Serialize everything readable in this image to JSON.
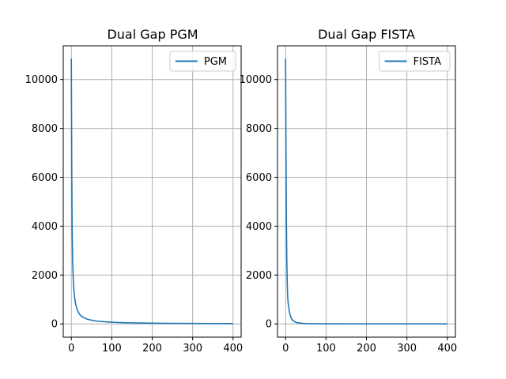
{
  "figure": {
    "background": "#ffffff",
    "line_color": "#1f77b4",
    "grid_color": "#b0b0b0"
  },
  "chart_data": [
    {
      "type": "line",
      "title": "Dual Gap PGM",
      "xlabel": "",
      "ylabel": "",
      "xlim": [
        -20,
        420
      ],
      "ylim": [
        -542,
        11380
      ],
      "xticks": [
        0,
        100,
        200,
        300,
        400
      ],
      "yticks": [
        0,
        2000,
        4000,
        6000,
        8000,
        10000
      ],
      "grid": true,
      "legend": "top-right",
      "series": [
        {
          "name": "PGM",
          "x": [
            0,
            1,
            2,
            3,
            4,
            5,
            6,
            7,
            8,
            10,
            12,
            15,
            20,
            25,
            30,
            40,
            50,
            60,
            80,
            100,
            120,
            150,
            200,
            250,
            300,
            350,
            400
          ],
          "y": [
            10850,
            6500,
            3900,
            2750,
            2150,
            1750,
            1450,
            1250,
            1100,
            880,
            720,
            560,
            400,
            320,
            260,
            190,
            150,
            120,
            90,
            70,
            55,
            42,
            30,
            23,
            18,
            15,
            12
          ]
        }
      ]
    },
    {
      "type": "line",
      "title": "Dual Gap FISTA",
      "xlabel": "",
      "ylabel": "",
      "xlim": [
        -20,
        420
      ],
      "ylim": [
        -542,
        11380
      ],
      "xticks": [
        0,
        100,
        200,
        300,
        400
      ],
      "yticks": [
        0,
        2000,
        4000,
        6000,
        8000,
        10000
      ],
      "grid": true,
      "legend": "top-right",
      "series": [
        {
          "name": "FISTA",
          "x": [
            0,
            1,
            2,
            3,
            4,
            5,
            6,
            8,
            10,
            12,
            15,
            20,
            25,
            30,
            40,
            50,
            60,
            80,
            100,
            150,
            200,
            300,
            400
          ],
          "y": [
            10850,
            7000,
            4200,
            2600,
            1700,
            1150,
            900,
            650,
            450,
            320,
            200,
            110,
            70,
            45,
            25,
            15,
            10,
            6,
            4,
            2,
            1,
            0,
            0
          ]
        }
      ]
    }
  ]
}
